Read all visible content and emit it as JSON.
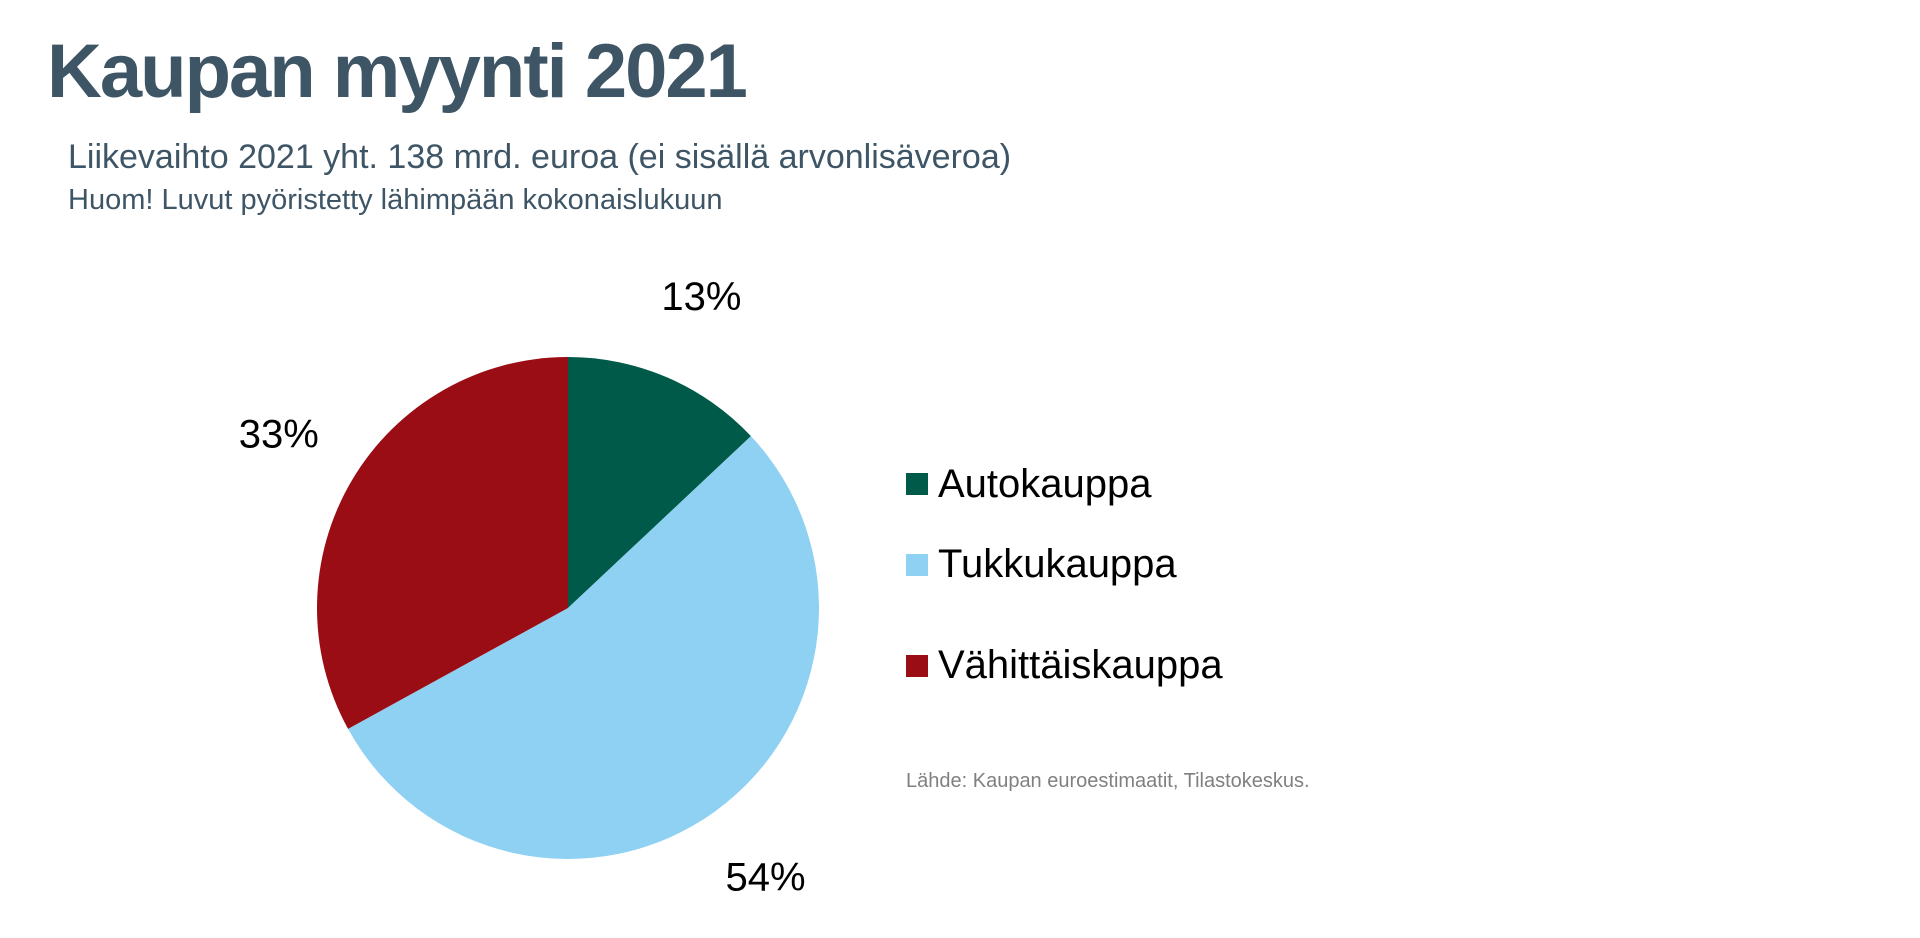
{
  "header": {
    "title": "Kaupan myynti 2021",
    "subtitle": "Liikevaihto 2021 yht. 138 mrd. euroa (ei sisällä arvonlisäveroa)",
    "note": "Huom! Luvut pyöristetty lähimpään kokonaislukuun"
  },
  "chart_data": {
    "type": "pie",
    "categories": [
      "Autokauppa",
      "Tukkukauppa",
      "Vähittäiskauppa"
    ],
    "values": [
      13,
      54,
      33
    ],
    "value_labels": [
      "13%",
      "54%",
      "33%"
    ],
    "colors": [
      "#005a49",
      "#8fd1f3",
      "#9b0d15"
    ],
    "legend_placement": "right",
    "start_angle": "12 o'clock, clockwise"
  },
  "source": "Lähde: Kaupan euroestimaatit, Tilastokeskus."
}
